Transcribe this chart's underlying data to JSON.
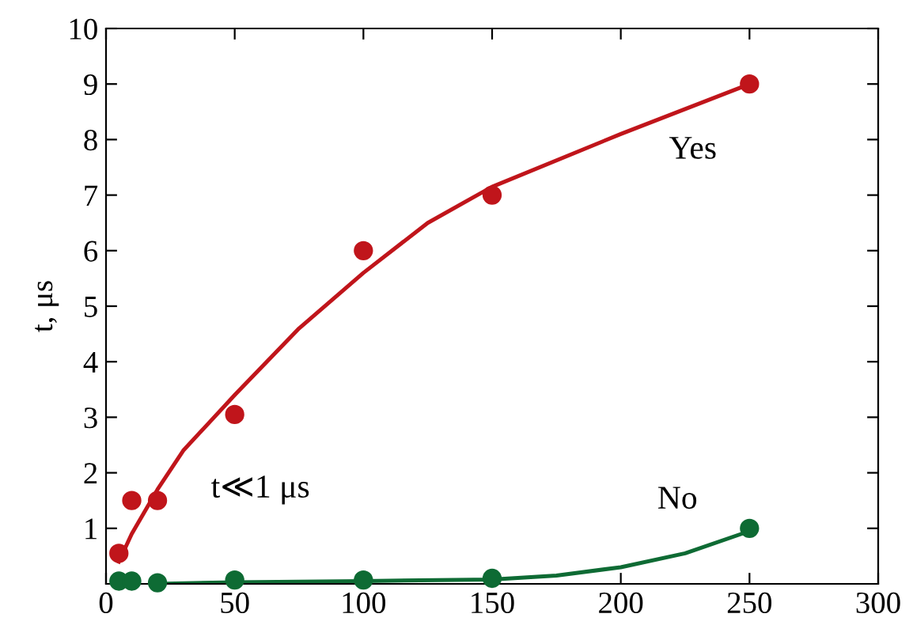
{
  "chart_data": {
    "type": "scatter",
    "ylabel": "t, μs",
    "xlim": [
      0,
      300
    ],
    "ylim": [
      0,
      10
    ],
    "xticks": [
      0,
      50,
      100,
      150,
      200,
      250,
      300
    ],
    "yticks": [
      1,
      2,
      3,
      4,
      5,
      6,
      7,
      8,
      9,
      10
    ],
    "grid": false,
    "legend": false,
    "series": [
      {
        "marker": "circle",
        "color": "#c0151b",
        "x": [
          5,
          10,
          20,
          50,
          100,
          150,
          250
        ],
        "values": [
          0.55,
          1.5,
          1.5,
          3.05,
          6,
          7,
          9
        ]
      },
      {
        "marker": "circle",
        "color": "#0e6b34",
        "x": [
          5,
          10,
          20,
          50,
          100,
          150,
          250
        ],
        "values": [
          0.05,
          0.05,
          0.02,
          0.07,
          0.07,
          0.1,
          1.0
        ]
      },
      {
        "type": "line",
        "color": "#c0151b",
        "x": [
          5,
          10,
          20,
          30,
          50,
          75,
          100,
          125,
          150,
          200,
          250
        ],
        "values": [
          0.4,
          0.9,
          1.7,
          2.4,
          3.4,
          4.6,
          5.6,
          6.5,
          7.15,
          8.1,
          9.0
        ]
      },
      {
        "type": "line",
        "color": "#0e6b34",
        "x": [
          20,
          50,
          100,
          150,
          175,
          200,
          225,
          250
        ],
        "values": [
          0.0,
          0.03,
          0.05,
          0.08,
          0.15,
          0.3,
          0.55,
          0.95
        ]
      }
    ],
    "annotations": [
      "Yes",
      "No",
      "t≪1 μs"
    ]
  }
}
